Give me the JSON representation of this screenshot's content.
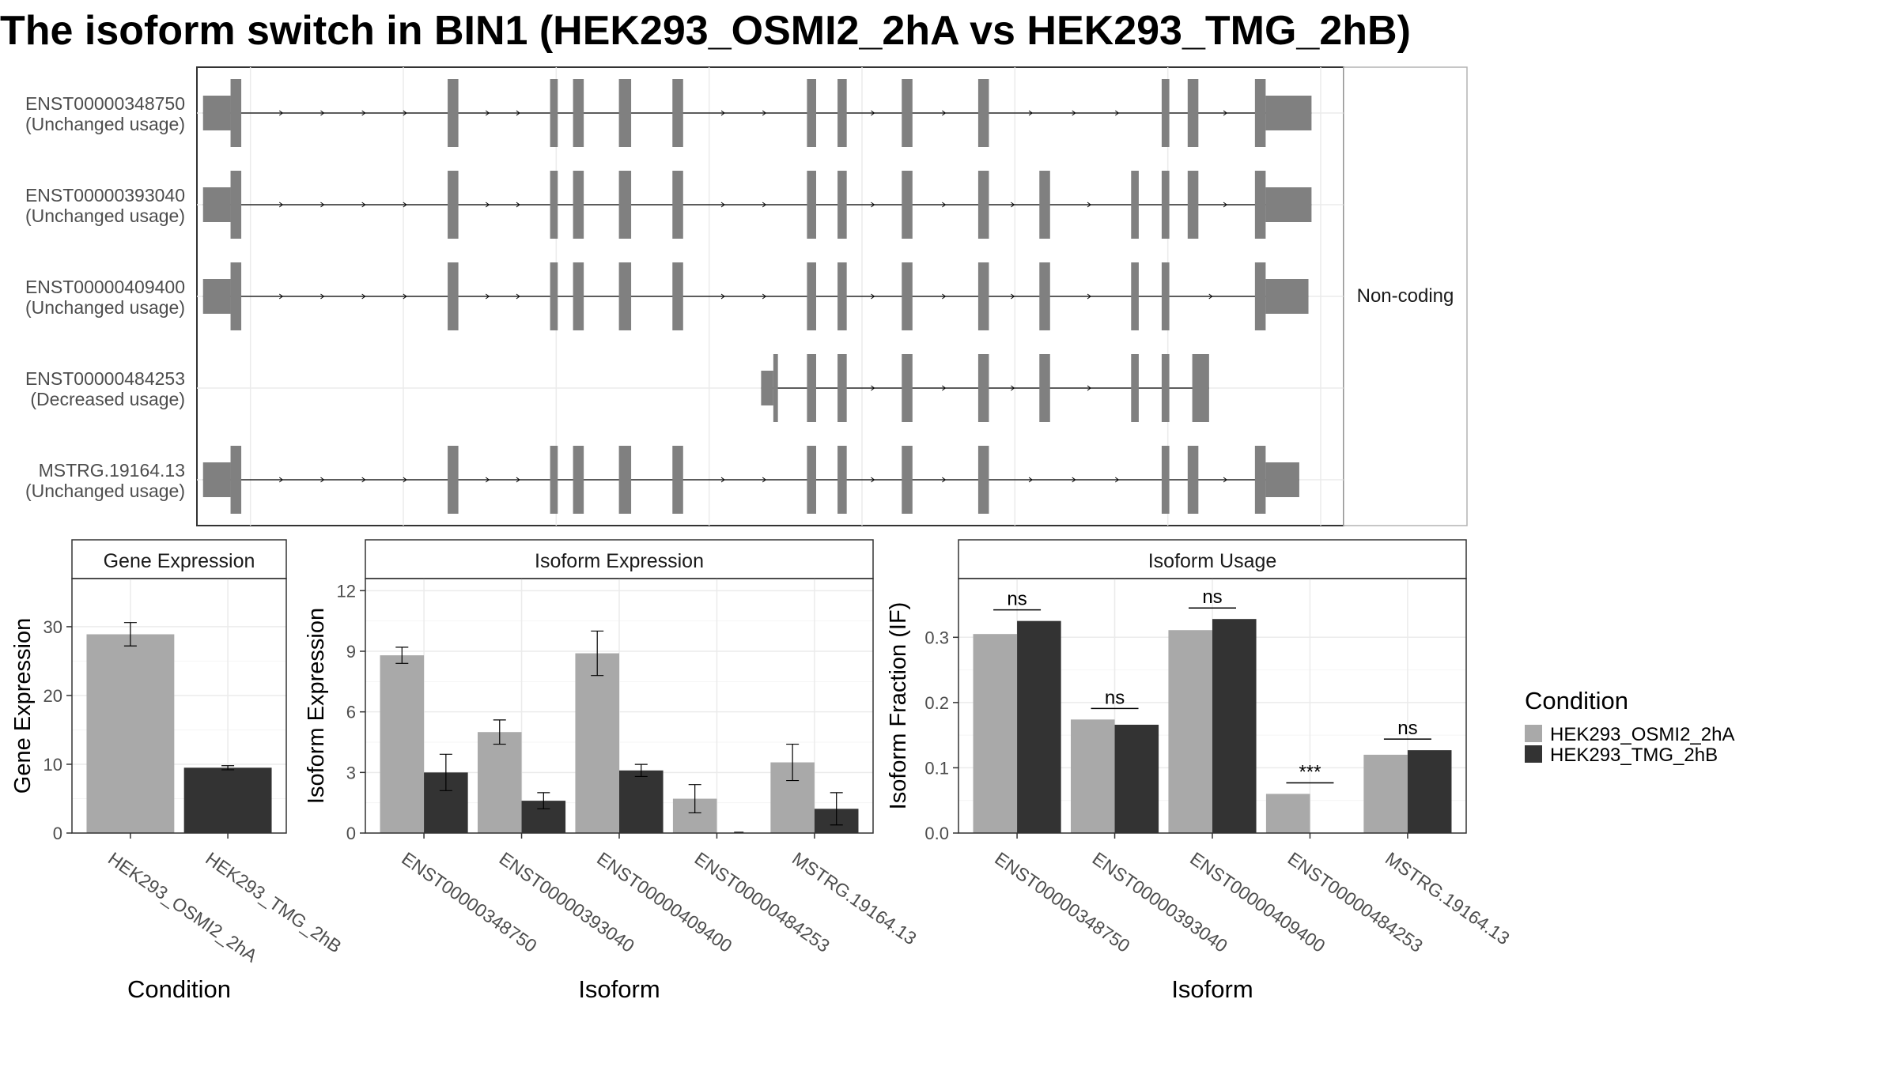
{
  "title": "The isoform switch in BIN1 (HEK293_OSMI2_2hA vs HEK293_TMG_2hB)",
  "colors": {
    "exon": "#808080",
    "condition_a": "#a9a9a9",
    "condition_b": "#333333",
    "grid": "#ebebeb",
    "panel_border": "#333333",
    "strip_border": "#b3b3b3"
  },
  "chart_data": [
    {
      "type": "gene-structure",
      "facet_label": "Non-coding",
      "transcripts": [
        {
          "id": "ENST00000348750",
          "usage": "(Unchanged usage)",
          "exons": [
            [
              0.4,
              2.2,
              "utr"
            ],
            [
              2.2,
              2.9,
              "cds"
            ],
            [
              16.4,
              17.1,
              "cds"
            ],
            [
              23.1,
              23.6,
              "cds"
            ],
            [
              24.6,
              25.3,
              "cds"
            ],
            [
              27.6,
              28.4,
              "cds"
            ],
            [
              31.1,
              31.8,
              "cds"
            ],
            [
              39.9,
              40.5,
              "cds"
            ],
            [
              41.9,
              42.5,
              "cds"
            ],
            [
              46.1,
              46.8,
              "cds"
            ],
            [
              51.1,
              51.8,
              "cds"
            ],
            [
              63.1,
              63.6,
              "cds"
            ],
            [
              64.8,
              65.5,
              "cds"
            ],
            [
              69.2,
              69.9,
              "cds"
            ],
            [
              69.9,
              72.9,
              "utr"
            ]
          ]
        },
        {
          "id": "ENST00000393040",
          "usage": "(Unchanged usage)",
          "exons": [
            [
              0.4,
              2.2,
              "utr"
            ],
            [
              2.2,
              2.9,
              "cds"
            ],
            [
              16.4,
              17.1,
              "cds"
            ],
            [
              23.1,
              23.6,
              "cds"
            ],
            [
              24.6,
              25.3,
              "cds"
            ],
            [
              27.6,
              28.4,
              "cds"
            ],
            [
              31.1,
              31.8,
              "cds"
            ],
            [
              39.9,
              40.5,
              "cds"
            ],
            [
              41.9,
              42.5,
              "cds"
            ],
            [
              46.1,
              46.8,
              "cds"
            ],
            [
              51.1,
              51.8,
              "cds"
            ],
            [
              55.1,
              55.8,
              "cds"
            ],
            [
              61.1,
              61.6,
              "cds"
            ],
            [
              63.1,
              63.6,
              "cds"
            ],
            [
              64.8,
              65.5,
              "cds"
            ],
            [
              69.2,
              69.9,
              "cds"
            ],
            [
              69.9,
              72.9,
              "utr"
            ]
          ]
        },
        {
          "id": "ENST00000409400",
          "usage": "(Unchanged usage)",
          "exons": [
            [
              0.4,
              2.2,
              "utr"
            ],
            [
              2.2,
              2.9,
              "cds"
            ],
            [
              16.4,
              17.1,
              "cds"
            ],
            [
              23.1,
              23.6,
              "cds"
            ],
            [
              24.6,
              25.3,
              "cds"
            ],
            [
              27.6,
              28.4,
              "cds"
            ],
            [
              31.1,
              31.8,
              "cds"
            ],
            [
              39.9,
              40.5,
              "cds"
            ],
            [
              41.9,
              42.5,
              "cds"
            ],
            [
              46.1,
              46.8,
              "cds"
            ],
            [
              51.1,
              51.8,
              "cds"
            ],
            [
              55.1,
              55.8,
              "cds"
            ],
            [
              61.1,
              61.6,
              "cds"
            ],
            [
              63.1,
              63.6,
              "cds"
            ],
            [
              69.2,
              69.9,
              "cds"
            ],
            [
              69.9,
              72.7,
              "utr"
            ]
          ]
        },
        {
          "id": "ENST00000484253",
          "usage": "(Decreased usage)",
          "exons": [
            [
              36.9,
              37.7,
              "utr"
            ],
            [
              37.7,
              38.0,
              "cds"
            ],
            [
              39.9,
              40.5,
              "cds"
            ],
            [
              41.9,
              42.5,
              "cds"
            ],
            [
              46.1,
              46.8,
              "cds"
            ],
            [
              51.1,
              51.8,
              "cds"
            ],
            [
              55.1,
              55.8,
              "cds"
            ],
            [
              61.1,
              61.6,
              "cds"
            ],
            [
              63.1,
              63.6,
              "cds"
            ],
            [
              65.1,
              66.2,
              "cds"
            ]
          ]
        },
        {
          "id": "MSTRG.19164.13",
          "usage": "(Unchanged usage)",
          "exons": [
            [
              0.4,
              2.2,
              "utr"
            ],
            [
              2.2,
              2.9,
              "cds"
            ],
            [
              16.4,
              17.1,
              "cds"
            ],
            [
              23.1,
              23.6,
              "cds"
            ],
            [
              24.6,
              25.3,
              "cds"
            ],
            [
              27.6,
              28.4,
              "cds"
            ],
            [
              31.1,
              31.8,
              "cds"
            ],
            [
              39.9,
              40.5,
              "cds"
            ],
            [
              41.9,
              42.5,
              "cds"
            ],
            [
              46.1,
              46.8,
              "cds"
            ],
            [
              51.1,
              51.8,
              "cds"
            ],
            [
              63.1,
              63.6,
              "cds"
            ],
            [
              64.8,
              65.5,
              "cds"
            ],
            [
              69.2,
              69.9,
              "cds"
            ],
            [
              69.9,
              72.1,
              "utr"
            ]
          ]
        }
      ]
    },
    {
      "type": "bar",
      "strip": "Gene Expression",
      "ylabel": "Gene Expression",
      "xlabel": "Condition",
      "ylim": [
        0,
        37
      ],
      "yticks": [
        0,
        10,
        20,
        30
      ],
      "categories": [
        "HEK293_OSMI2_2hA",
        "HEK293_TMG_2hB"
      ],
      "values": [
        28.9,
        9.5
      ],
      "errors": [
        1.7,
        0.3
      ]
    },
    {
      "type": "bar",
      "strip": "Isoform Expression",
      "ylabel": "Isoform Expression",
      "xlabel": "Isoform",
      "ylim": [
        0,
        12.6
      ],
      "yticks": [
        0,
        3,
        6,
        9,
        12
      ],
      "categories": [
        "ENST00000348750",
        "ENST00000393040",
        "ENST00000409400",
        "ENST00000484253",
        "MSTRG.19164.13"
      ],
      "series": [
        {
          "name": "HEK293_OSMI2_2hA",
          "values": [
            8.8,
            5.0,
            8.9,
            1.7,
            3.5
          ],
          "errors": [
            0.4,
            0.6,
            1.1,
            0.7,
            0.9
          ]
        },
        {
          "name": "HEK293_TMG_2hB",
          "values": [
            3.0,
            1.6,
            3.1,
            0.0,
            1.2
          ],
          "errors": [
            0.9,
            0.4,
            0.3,
            0.0,
            0.8
          ]
        }
      ]
    },
    {
      "type": "bar",
      "strip": "Isoform Usage",
      "ylabel": "Isoform Fraction (IF)",
      "xlabel": "Isoform",
      "ylim": [
        0,
        0.39
      ],
      "yticks": [
        0.0,
        0.1,
        0.2,
        0.3
      ],
      "ytick_labels": [
        "0.0",
        "0.1",
        "0.2",
        "0.3"
      ],
      "categories": [
        "ENST00000348750",
        "ENST00000393040",
        "ENST00000409400",
        "ENST00000484253",
        "MSTRG.19164.13"
      ],
      "series": [
        {
          "name": "HEK293_OSMI2_2hA",
          "values": [
            0.305,
            0.174,
            0.311,
            0.06,
            0.12
          ]
        },
        {
          "name": "HEK293_TMG_2hB",
          "values": [
            0.325,
            0.166,
            0.328,
            0.0,
            0.127
          ]
        }
      ],
      "significance": [
        "ns",
        "ns",
        "ns",
        "***",
        "ns"
      ]
    }
  ],
  "legend": {
    "title": "Condition",
    "entries": [
      "HEK293_OSMI2_2hA",
      "HEK293_TMG_2hB"
    ]
  }
}
